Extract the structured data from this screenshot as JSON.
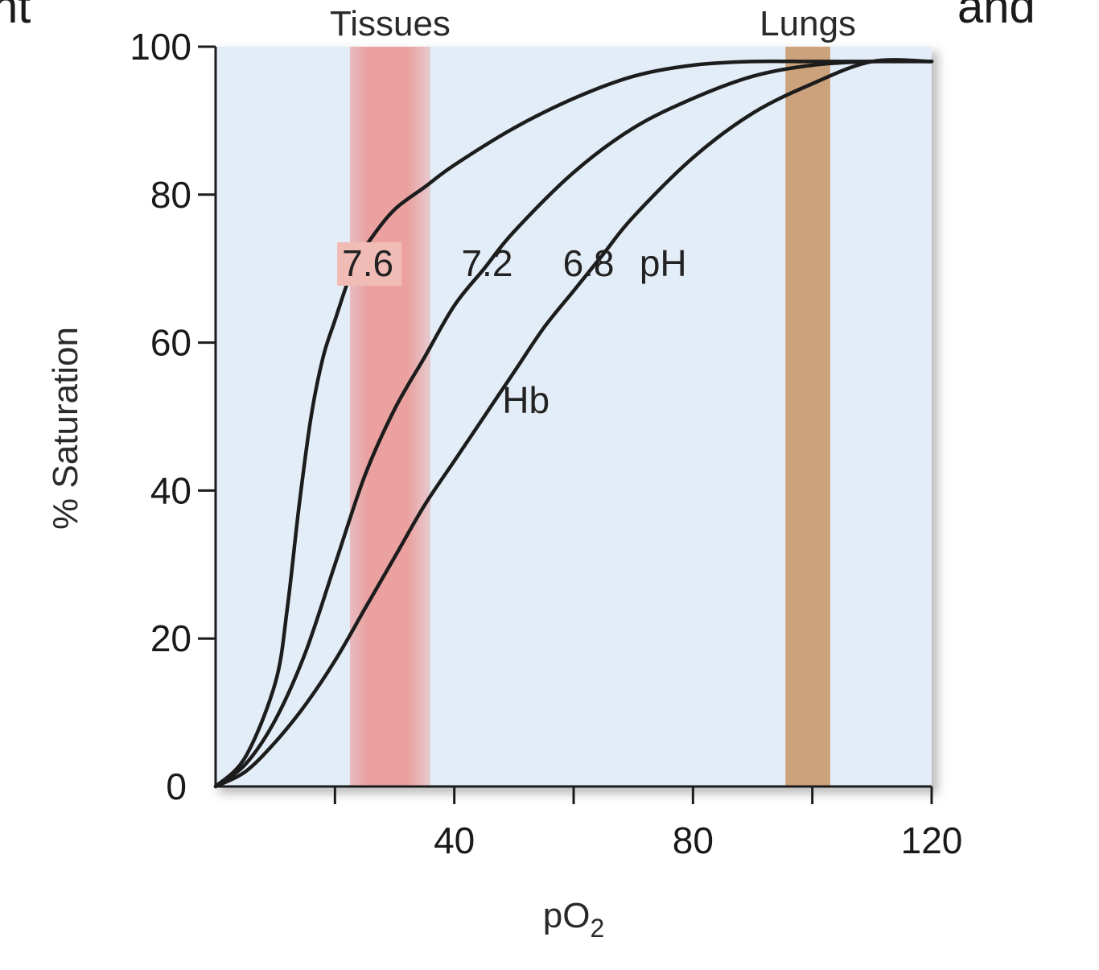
{
  "header_fragment": {
    "left": "nt",
    "right": "and"
  },
  "chart_data": {
    "type": "line",
    "xlabel": "pO",
    "xlabel_subscript": "2",
    "ylabel": "% Saturation",
    "xlim": [
      0,
      120
    ],
    "ylim": [
      0,
      100
    ],
    "x_ticks": [
      20,
      40,
      60,
      80,
      100,
      120
    ],
    "x_tick_labels": [
      {
        "value": 40,
        "label": "40"
      },
      {
        "value": 80,
        "label": "80"
      },
      {
        "value": 120,
        "label": "120"
      }
    ],
    "y_ticks": [
      0,
      20,
      40,
      60,
      80,
      100
    ],
    "y_tick_labels": [
      {
        "value": 0,
        "label": "0"
      },
      {
        "value": 20,
        "label": "20"
      },
      {
        "value": 40,
        "label": "40"
      },
      {
        "value": 60,
        "label": "60"
      },
      {
        "value": 80,
        "label": "80"
      },
      {
        "value": 100,
        "label": "100"
      }
    ],
    "grid": false,
    "plot_background": "#e3edf7",
    "bands": [
      {
        "name": "Tissues",
        "x_from": 22.5,
        "x_to": 36,
        "color": "#eaa1a0",
        "soft_edges": true
      },
      {
        "name": "Lungs",
        "x_from": 95.5,
        "x_to": 103,
        "color": "#cca27c",
        "soft_edges": false
      }
    ],
    "series": [
      {
        "label": "7.6",
        "label_highlight": "#f1bcb6",
        "x": [
          0,
          5,
          10,
          12,
          14,
          16,
          18,
          20,
          23,
          26,
          30,
          35,
          40,
          50,
          60,
          70,
          80,
          90,
          100,
          110,
          120
        ],
        "y": [
          0,
          4,
          14,
          24,
          38,
          50,
          58,
          63,
          70,
          74,
          78,
          81,
          84,
          89,
          93,
          96,
          97.5,
          98,
          98,
          98,
          98
        ]
      },
      {
        "label": "7.2",
        "x": [
          0,
          5,
          10,
          15,
          20,
          25,
          30,
          35,
          40,
          45,
          50,
          60,
          70,
          80,
          90,
          100,
          110,
          120
        ],
        "y": [
          0,
          3,
          9,
          18,
          30,
          42,
          51,
          58,
          65,
          70,
          75,
          83,
          89,
          93,
          96,
          97.5,
          98,
          98
        ]
      },
      {
        "label": "6.8",
        "x": [
          0,
          5,
          10,
          15,
          20,
          25,
          30,
          35,
          40,
          45,
          50,
          55,
          60,
          65,
          70,
          80,
          90,
          100,
          110,
          120
        ],
        "y": [
          0,
          2,
          6,
          11,
          17,
          24,
          31,
          38,
          44,
          50,
          56,
          62,
          67,
          72,
          77,
          85,
          91,
          95,
          98,
          98
        ]
      }
    ],
    "curve_labels": [
      {
        "text": "7.6",
        "x": 25.5,
        "y": 69
      },
      {
        "text": "7.2",
        "x": 45.5,
        "y": 69
      },
      {
        "text": "6.8",
        "x": 62.5,
        "y": 69
      },
      {
        "text": "pH",
        "x": 75,
        "y": 69
      },
      {
        "text": "Hb",
        "x": 52,
        "y": 50.5
      }
    ]
  }
}
